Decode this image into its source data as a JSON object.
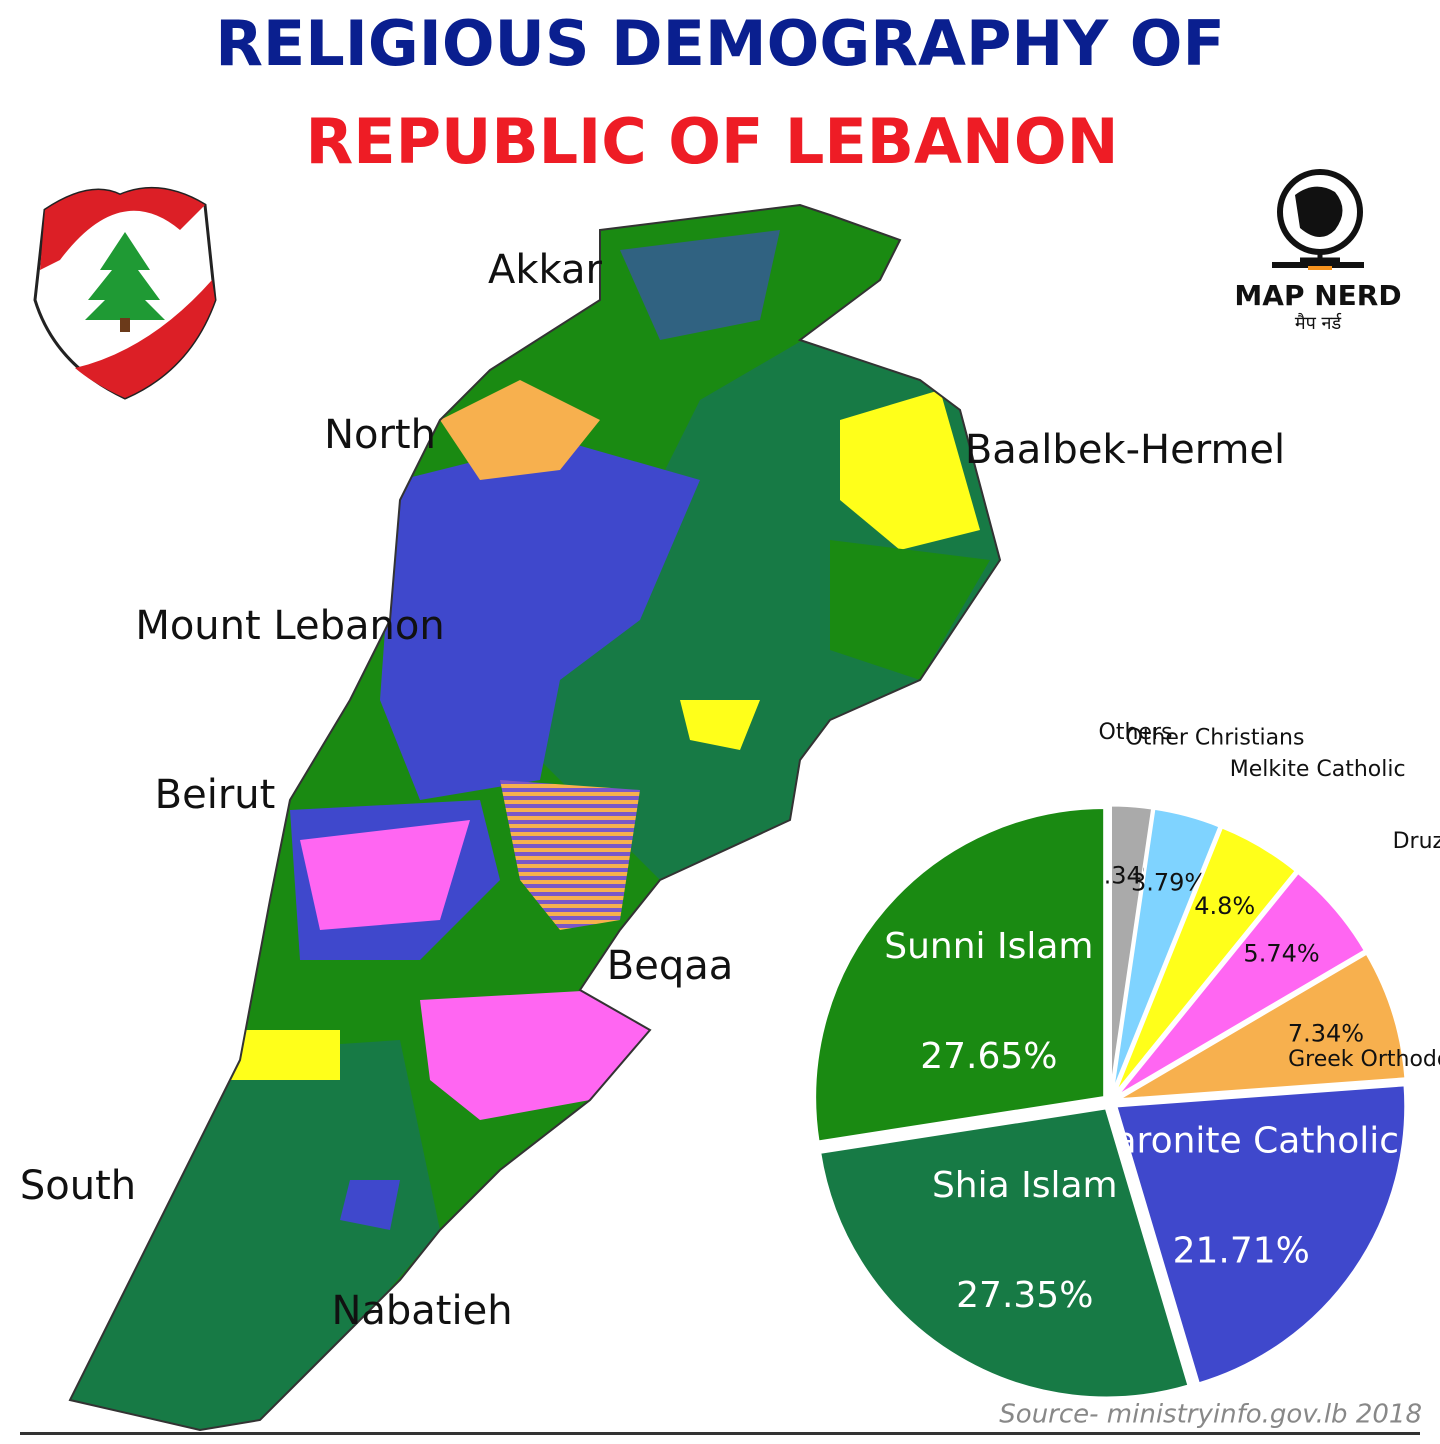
{
  "title_lines": [
    "RELIGIOUS DEMOGRAPHY OF",
    "REPUBLIC OF LEBANON"
  ],
  "logo": {
    "name": "MAP NERD",
    "subtitle": "मैप नर्ड"
  },
  "map": {
    "regions": [
      "Akkar",
      "North",
      "Baalbek-Hermel",
      "Mount Lebanon",
      "Beirut",
      "Beqaa",
      "South",
      "Nabatieh"
    ]
  },
  "chart_data": {
    "type": "pie",
    "categories": [
      "Others",
      "Other Christians",
      "Melkite Catholic",
      "Druze",
      "Greek Orthodox",
      "Maronite Catholic",
      "Shia Islam",
      "Sunni Islam"
    ],
    "values": [
      2.34,
      3.79,
      4.8,
      5.74,
      7.34,
      21.71,
      27.35,
      27.65
    ],
    "value_labels": [
      "2.34%",
      "3.79%",
      "4.8%",
      "5.74%",
      "7.34%",
      "21.71%",
      "27.35%",
      "27.65%"
    ],
    "colors": [
      "#aaaaaa",
      "#7fd3ff",
      "#ffff1a",
      "#ff66f2",
      "#f7b04e",
      "#3f48cc",
      "#177a45",
      "#1a8a12"
    ]
  },
  "source": "Source- ministryinfo.gov.lb 2018"
}
